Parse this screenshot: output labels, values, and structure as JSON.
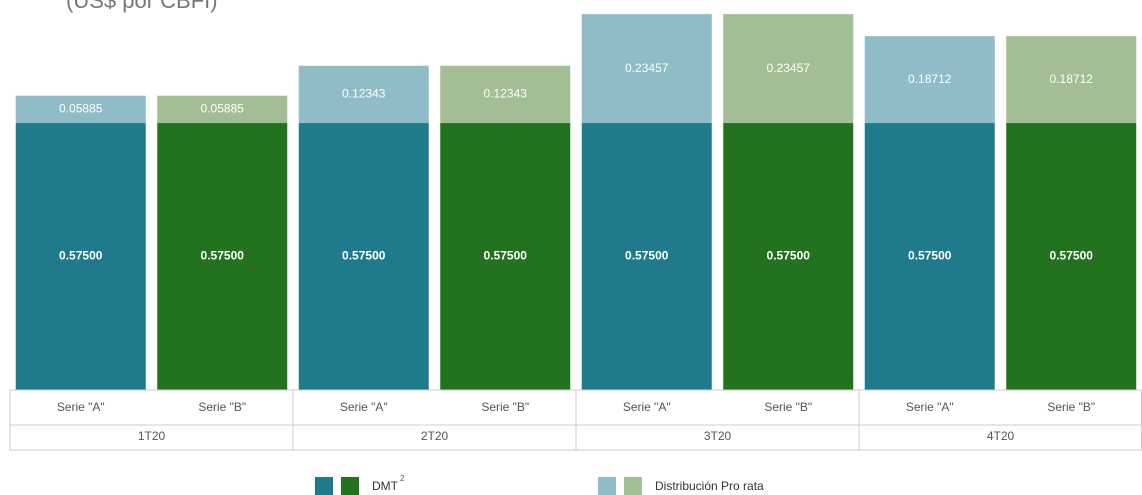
{
  "chart_data": {
    "type": "stacked_bar",
    "title": "(US$ por CBFI)",
    "categories": [
      "Serie \"A\"",
      "Serie \"B\"",
      "Serie \"A\"",
      "Serie \"B\"",
      "Serie \"A\"",
      "Serie \"B\"",
      "Serie \"A\"",
      "Serie \"B\""
    ],
    "groups": [
      "1T20",
      "2T20",
      "3T20",
      "4T20"
    ],
    "series": [
      {
        "name": "DMT",
        "superscript": "2",
        "colors": [
          "#1f7a8c",
          "#23721f"
        ],
        "values": [
          0.575,
          0.575,
          0.575,
          0.575,
          0.575,
          0.575,
          0.575,
          0.575
        ],
        "value_labels": [
          "0.57500",
          "0.57500",
          "0.57500",
          "0.57500",
          "0.57500",
          "0.57500",
          "0.57500",
          "0.57500"
        ]
      },
      {
        "name": "Distribución Pro rata",
        "colors": [
          "#8fbcc6",
          "#a3bd94"
        ],
        "values": [
          0.05885,
          0.05885,
          0.12343,
          0.12343,
          0.23457,
          0.23457,
          0.18712,
          0.18712
        ]
      }
    ],
    "ylim": [
      0,
      0.84
    ]
  }
}
